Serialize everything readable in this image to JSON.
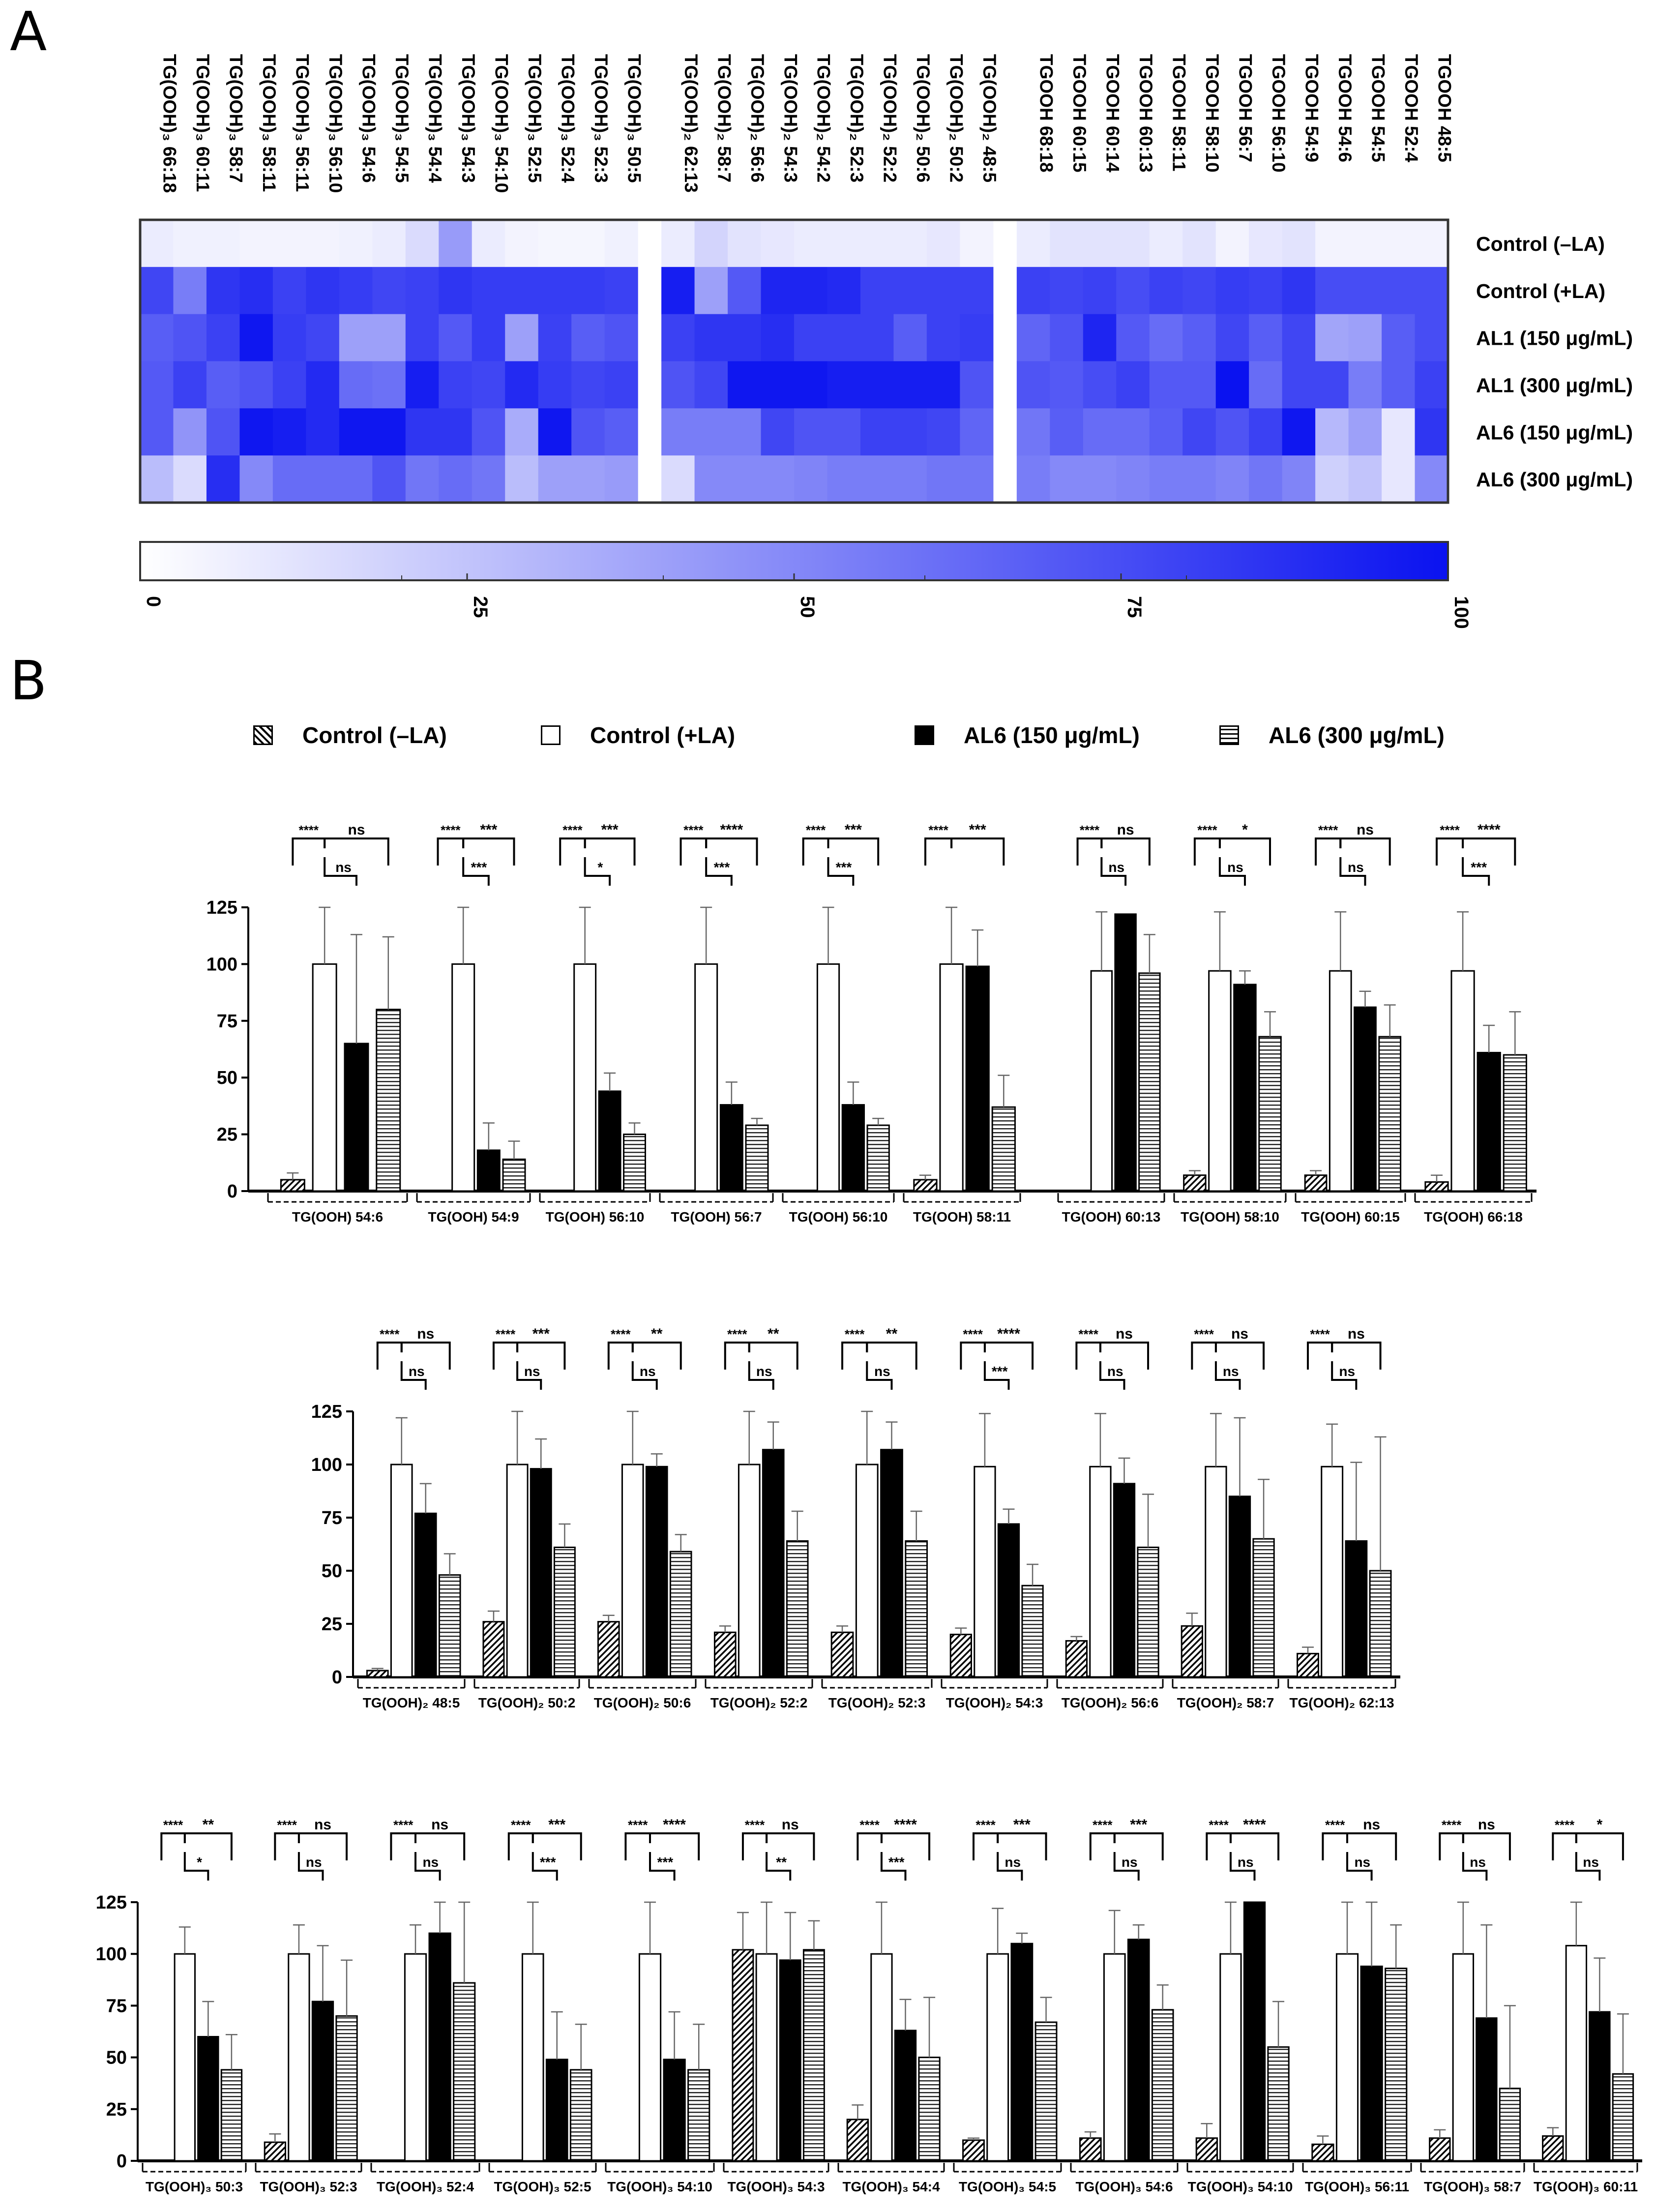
{
  "panels": {
    "a_label": "A",
    "b_label": "B"
  },
  "heatmap": {
    "columns_group1": [
      "TG(OOH)₃ 66:18",
      "TG(OOH)₃ 60:11",
      "TG(OOH)₃ 58:7",
      "TG(OOH)₃ 58:11",
      "TG(OOH)₃ 56:11",
      "TG(OOH)₃ 56:10",
      "TG(OOH)₃ 54:6",
      "TG(OOH)₃ 54:5",
      "TG(OOH)₃ 54:4",
      "TG(OOH)₃ 54:3",
      "TG(OOH)₃ 54:10",
      "TG(OOH)₃ 52:5",
      "TG(OOH)₃ 52:4",
      "TG(OOH)₃ 52:3",
      "TG(OOH)₃ 50:5"
    ],
    "columns_group2": [
      "TG(OOH)₂ 62:13",
      "TG(OOH)₂ 58:7",
      "TG(OOH)₂ 56:6",
      "TG(OOH)₂ 54:3",
      "TG(OOH)₂ 54:2",
      "TG(OOH)₂ 52:3",
      "TG(OOH)₂ 52:2",
      "TG(OOH)₂ 50:6",
      "TG(OOH)₂ 50:2",
      "TG(OOH)₂ 48:5"
    ],
    "columns_group3": [
      "TGOOH 68:18",
      "TGOOH 60:15",
      "TGOOH 60:14",
      "TGOOH 60:13",
      "TGOOH 58:11",
      "TGOOH 58:10",
      "TGOOH 56:7",
      "TGOOH 56:10",
      "TGOOH 54:9",
      "TGOOH 54:6",
      "TGOOH 54:5",
      "TGOOH 52:4",
      "TGOOH 48:5"
    ],
    "rows": [
      "Control (–LA)",
      "Control (+LA)",
      "AL1 (150 μg/mL)",
      "AL1 (300 μg/mL)",
      "AL6 (150 μg/mL)",
      "AL6 (300 μg/mL)"
    ],
    "values_group1": [
      [
        8,
        6,
        6,
        5,
        5,
        5,
        6,
        8,
        15,
        42,
        8,
        5,
        4,
        4,
        6
      ],
      [
        78,
        55,
        85,
        88,
        80,
        85,
        82,
        78,
        80,
        85,
        82,
        82,
        82,
        82,
        80
      ],
      [
        68,
        72,
        80,
        98,
        82,
        78,
        40,
        40,
        80,
        70,
        82,
        40,
        80,
        68,
        72
      ],
      [
        70,
        80,
        68,
        72,
        80,
        90,
        62,
        60,
        95,
        80,
        78,
        90,
        82,
        78,
        80
      ],
      [
        70,
        45,
        72,
        98,
        95,
        90,
        98,
        98,
        85,
        85,
        72,
        35,
        98,
        72,
        68
      ],
      [
        28,
        15,
        88,
        50,
        62,
        62,
        62,
        72,
        58,
        62,
        58,
        28,
        40,
        40,
        42
      ]
    ],
    "values_group2": [
      [
        8,
        18,
        12,
        10,
        8,
        8,
        8,
        8,
        10,
        5
      ],
      [
        95,
        40,
        70,
        92,
        92,
        90,
        80,
        80,
        80,
        80
      ],
      [
        80,
        85,
        85,
        88,
        80,
        80,
        80,
        68,
        80,
        82
      ],
      [
        72,
        78,
        98,
        98,
        98,
        95,
        95,
        95,
        95,
        72
      ],
      [
        55,
        55,
        55,
        78,
        72,
        72,
        80,
        80,
        78,
        65
      ],
      [
        15,
        50,
        50,
        50,
        52,
        55,
        55,
        55,
        58,
        58
      ]
    ],
    "values_group3": [
      [
        8,
        12,
        12,
        12,
        8,
        12,
        5,
        10,
        12,
        5,
        5,
        5,
        5
      ],
      [
        80,
        78,
        80,
        75,
        80,
        78,
        82,
        80,
        85,
        75,
        75,
        75,
        75
      ],
      [
        65,
        72,
        92,
        70,
        62,
        68,
        78,
        68,
        78,
        38,
        40,
        68,
        75
      ],
      [
        72,
        70,
        75,
        80,
        70,
        70,
        100,
        62,
        78,
        78,
        55,
        68,
        80
      ],
      [
        58,
        68,
        62,
        62,
        68,
        78,
        72,
        80,
        98,
        30,
        40,
        10,
        85
      ],
      [
        55,
        50,
        50,
        52,
        55,
        55,
        52,
        58,
        52,
        20,
        25,
        10,
        50
      ]
    ],
    "colorbar_ticks": [
      "0",
      "25",
      "50",
      "75",
      "100"
    ],
    "colormap": {
      "low": "#ffffff",
      "high": "#0a12f0"
    }
  },
  "legend": {
    "control_minus": "Control (–LA)",
    "control_plus": "Control (+LA)",
    "al6_150": "AL6 (150 μg/mL)",
    "al6_300": "AL6 (300 μg/mL)"
  },
  "chart_data": [
    {
      "type": "heatmap",
      "columns": [
        "TG(OOH)₃ 66:18",
        "TG(OOH)₃ 60:11",
        "TG(OOH)₃ 58:7",
        "TG(OOH)₃ 58:11",
        "TG(OOH)₃ 56:11",
        "TG(OOH)₃ 56:10",
        "TG(OOH)₃ 54:6",
        "TG(OOH)₃ 54:5",
        "TG(OOH)₃ 54:4",
        "TG(OOH)₃ 54:3",
        "TG(OOH)₃ 54:10",
        "TG(OOH)₃ 52:5",
        "TG(OOH)₃ 52:4",
        "TG(OOH)₃ 52:3",
        "TG(OOH)₃ 50:5",
        "TG(OOH)₂ 62:13",
        "TG(OOH)₂ 58:7",
        "TG(OOH)₂ 56:6",
        "TG(OOH)₂ 54:3",
        "TG(OOH)₂ 54:2",
        "TG(OOH)₂ 52:3",
        "TG(OOH)₂ 52:2",
        "TG(OOH)₂ 50:6",
        "TG(OOH)₂ 50:2",
        "TG(OOH)₂ 48:5",
        "TGOOH 68:18",
        "TGOOH 60:15",
        "TGOOH 60:14",
        "TGOOH 60:13",
        "TGOOH 58:11",
        "TGOOH 58:10",
        "TGOOH 56:7",
        "TGOOH 56:10",
        "TGOOH 54:9",
        "TGOOH 54:6",
        "TGOOH 54:5",
        "TGOOH 52:4",
        "TGOOH 48:5"
      ],
      "rows": [
        "Control (–LA)",
        "Control (+LA)",
        "AL1 (150 μg/mL)",
        "AL1 (300 μg/mL)",
        "AL6 (150 μg/mL)",
        "AL6 (300 μg/mL)"
      ],
      "scale": [
        0,
        100
      ]
    },
    {
      "type": "bar",
      "series": [
        "Control (–LA)",
        "Control (+LA)",
        "AL6 (150 μg/mL)",
        "AL6 (300 μg/mL)"
      ],
      "ylim": [
        0,
        125
      ],
      "yticks": [
        "0",
        "25",
        "50",
        "75",
        "100",
        "125"
      ],
      "groups": [
        {
          "label": "TG(OOH) 54:6",
          "values": [
            5,
            100,
            65,
            80
          ],
          "errors": [
            3,
            25,
            48,
            32
          ],
          "sig": [
            "****",
            "ns",
            "ns"
          ]
        },
        {
          "label": "TG(OOH) 54:9",
          "values": [
            0,
            100,
            18,
            14
          ],
          "errors": [
            0,
            25,
            12,
            8
          ],
          "sig": [
            "****",
            "***",
            "***"
          ]
        },
        {
          "label": "TG(OOH) 56:10",
          "values": [
            0,
            100,
            44,
            25
          ],
          "errors": [
            0,
            25,
            8,
            5
          ],
          "sig": [
            "****",
            "***",
            "*"
          ]
        },
        {
          "label": "TG(OOH) 56:7",
          "values": [
            0,
            100,
            38,
            29
          ],
          "errors": [
            0,
            25,
            10,
            3
          ],
          "sig": [
            "****",
            "****",
            "***"
          ]
        },
        {
          "label": "TG(OOH) 56:10",
          "values": [
            0,
            100,
            38,
            29
          ],
          "errors": [
            0,
            25,
            10,
            3
          ],
          "sig": [
            "****",
            "***",
            "***"
          ]
        },
        {
          "label": "TG(OOH) 58:11",
          "values": [
            5,
            100,
            99,
            37
          ],
          "errors": [
            2,
            25,
            16,
            14
          ],
          "sig": [
            "****",
            "***",
            ""
          ]
        },
        {
          "label": "TG(OOH) 60:13",
          "values": [
            0,
            97,
            122,
            96
          ],
          "errors": [
            0,
            26,
            0,
            17
          ],
          "sig": [
            "****",
            "ns",
            "ns"
          ]
        },
        {
          "label": "TG(OOH) 58:10",
          "values": [
            7,
            97,
            91,
            68
          ],
          "errors": [
            2,
            26,
            6,
            11
          ],
          "sig": [
            "****",
            "*",
            "ns"
          ]
        },
        {
          "label": "TG(OOH) 60:15",
          "values": [
            7,
            97,
            81,
            68
          ],
          "errors": [
            2,
            26,
            7,
            14
          ],
          "sig": [
            "****",
            "ns",
            "ns"
          ]
        },
        {
          "label": "TG(OOH) 66:18",
          "values": [
            4,
            97,
            61,
            60
          ],
          "errors": [
            3,
            26,
            12,
            19
          ],
          "sig": [
            "****",
            "****",
            "***"
          ]
        },
        {
          "label": "TG(OOH)₂ 48:5",
          "values": [
            3,
            100,
            77,
            48
          ],
          "errors": [
            1,
            22,
            14,
            10
          ],
          "sig": [
            "****",
            "ns",
            "ns"
          ]
        },
        {
          "label": "TG(OOH)₂ 50:2",
          "values": [
            26,
            100,
            98,
            61
          ],
          "errors": [
            5,
            25,
            14,
            11
          ],
          "sig": [
            "****",
            "***",
            "ns"
          ]
        },
        {
          "label": "TG(OOH)₂ 50:6",
          "values": [
            26,
            100,
            99,
            59
          ],
          "errors": [
            3,
            25,
            6,
            8
          ],
          "sig": [
            "****",
            "**",
            "ns"
          ]
        },
        {
          "label": "TG(OOH)₂ 52:2",
          "values": [
            21,
            100,
            107,
            64
          ],
          "errors": [
            3,
            25,
            13,
            14
          ],
          "sig": [
            "****",
            "**",
            "ns"
          ]
        },
        {
          "label": "TG(OOH)₂ 52:3",
          "values": [
            21,
            100,
            107,
            64
          ],
          "errors": [
            3,
            25,
            13,
            14
          ],
          "sig": [
            "****",
            "**",
            "ns"
          ]
        },
        {
          "label": "TG(OOH)₂ 54:3",
          "values": [
            20,
            99,
            72,
            43
          ],
          "errors": [
            3,
            25,
            7,
            10
          ],
          "sig": [
            "****",
            "****",
            "***"
          ]
        },
        {
          "label": "TG(OOH)₂ 56:6",
          "values": [
            17,
            99,
            91,
            61
          ],
          "errors": [
            2,
            25,
            12,
            25
          ],
          "sig": [
            "****",
            "ns",
            "ns"
          ]
        },
        {
          "label": "TG(OOH)₂ 58:7",
          "values": [
            24,
            99,
            85,
            65
          ],
          "errors": [
            6,
            25,
            37,
            28
          ],
          "sig": [
            "****",
            "ns",
            "ns"
          ]
        },
        {
          "label": "TG(OOH)₂ 62:13",
          "values": [
            11,
            99,
            64,
            50
          ],
          "errors": [
            3,
            20,
            37,
            63
          ],
          "sig": [
            "****",
            "ns",
            "ns"
          ]
        },
        {
          "label": "TG(OOH)₃ 50:3",
          "values": [
            0,
            100,
            60,
            44
          ],
          "errors": [
            0,
            13,
            17,
            17
          ],
          "sig": [
            "****",
            "**",
            "*"
          ]
        },
        {
          "label": "TG(OOH)₃ 52:3",
          "values": [
            9,
            100,
            77,
            70
          ],
          "errors": [
            4,
            14,
            27,
            27
          ],
          "sig": [
            "****",
            "ns",
            "ns"
          ]
        },
        {
          "label": "TG(OOH)₃ 52:4",
          "values": [
            0,
            100,
            110,
            86
          ],
          "errors": [
            0,
            14,
            15,
            39
          ],
          "sig": [
            "****",
            "ns",
            "ns"
          ]
        },
        {
          "label": "TG(OOH)₃ 52:5",
          "values": [
            0,
            100,
            49,
            44
          ],
          "errors": [
            0,
            25,
            23,
            22
          ],
          "sig": [
            "****",
            "***",
            "***"
          ]
        },
        {
          "label": "TG(OOH)₃ 54:10",
          "values": [
            0,
            100,
            49,
            44
          ],
          "errors": [
            0,
            25,
            23,
            22
          ],
          "sig": [
            "****",
            "****",
            "***"
          ]
        },
        {
          "label": "TG(OOH)₃ 54:3",
          "values": [
            102,
            100,
            97,
            102
          ],
          "errors": [
            18,
            25,
            23,
            14
          ],
          "sig": [
            "****",
            "ns",
            "**"
          ]
        },
        {
          "label": "TG(OOH)₃ 54:4",
          "values": [
            20,
            100,
            63,
            50
          ],
          "errors": [
            7,
            26,
            15,
            29
          ],
          "sig": [
            "****",
            "****",
            "***"
          ]
        },
        {
          "label": "TG(OOH)₃ 54:5",
          "values": [
            10,
            100,
            105,
            67
          ],
          "errors": [
            1,
            22,
            5,
            12
          ],
          "sig": [
            "****",
            "***",
            "ns"
          ]
        },
        {
          "label": "TG(OOH)₃ 54:6",
          "values": [
            11,
            100,
            107,
            73
          ],
          "errors": [
            3,
            21,
            7,
            12
          ],
          "sig": [
            "****",
            "***",
            "ns"
          ]
        },
        {
          "label": "TG(OOH)₃ 54:10",
          "values": [
            11,
            100,
            125,
            55
          ],
          "errors": [
            7,
            25,
            0,
            22
          ],
          "sig": [
            "****",
            "****",
            "ns"
          ]
        },
        {
          "label": "TG(OOH)₃ 56:11",
          "values": [
            8,
            100,
            94,
            93
          ],
          "errors": [
            4,
            25,
            31,
            21
          ],
          "sig": [
            "****",
            "ns",
            "ns"
          ]
        },
        {
          "label": "TG(OOH)₃ 58:7",
          "values": [
            11,
            100,
            69,
            35
          ],
          "errors": [
            4,
            25,
            45,
            40
          ],
          "sig": [
            "****",
            "ns",
            "ns"
          ]
        },
        {
          "label": "TG(OOH)₃ 60:11",
          "values": [
            12,
            104,
            72,
            42
          ],
          "errors": [
            4,
            26,
            26,
            29
          ],
          "sig": [
            "****",
            "*",
            "ns"
          ]
        }
      ]
    }
  ]
}
